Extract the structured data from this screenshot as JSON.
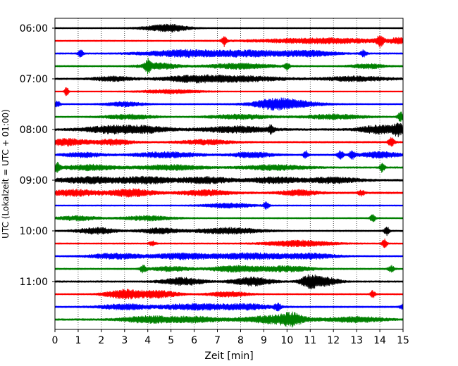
{
  "chart_data": {
    "type": "line",
    "title": "",
    "xlabel": "Zeit  [min]",
    "ylabel": "UTC (Lokalzeit = UTC + 01:00)",
    "xlim": [
      0,
      15
    ],
    "x_ticks": [
      "0",
      "1",
      "2",
      "3",
      "4",
      "5",
      "6",
      "7",
      "8",
      "9",
      "10",
      "11",
      "12",
      "13",
      "14",
      "15"
    ],
    "y_ticks": [
      "06:00",
      "07:00",
      "08:00",
      "09:00",
      "10:00",
      "11:00"
    ],
    "grid": "vertical dotted lines at each minute",
    "trace_interval_minutes": 15,
    "color_cycle": [
      "#000000",
      "#ff0000",
      "#0000ff",
      "#008000"
    ],
    "series": [
      {
        "start": "06:00",
        "color": "#000000",
        "noise": 0.3,
        "events": [
          [
            5.0,
            1.2,
            0.5
          ],
          [
            4.6,
            1.0,
            0.8
          ]
        ]
      },
      {
        "start": "06:15",
        "color": "#ff0000",
        "noise": 0.35,
        "events": [
          [
            7.3,
            2.8,
            0.08
          ],
          [
            11.5,
            1.4,
            2.0
          ],
          [
            14.0,
            3.0,
            0.1
          ],
          [
            14.8,
            1.2,
            0.3
          ]
        ]
      },
      {
        "start": "06:30",
        "color": "#0000ff",
        "noise": 0.4,
        "events": [
          [
            1.1,
            2.0,
            0.08
          ],
          [
            5.5,
            1.8,
            1.2
          ],
          [
            8.5,
            1.6,
            1.2
          ],
          [
            11.0,
            1.4,
            0.8
          ],
          [
            13.3,
            1.8,
            0.1
          ]
        ]
      },
      {
        "start": "06:45",
        "color": "#008000",
        "noise": 0.4,
        "events": [
          [
            4.0,
            3.0,
            0.08
          ],
          [
            4.5,
            1.6,
            0.6
          ],
          [
            8.0,
            1.4,
            1.0
          ],
          [
            10.0,
            1.8,
            0.08
          ],
          [
            13.5,
            1.2,
            0.5
          ]
        ]
      },
      {
        "start": "07:00",
        "color": "#000000",
        "noise": 0.45,
        "events": [
          [
            2.5,
            1.2,
            0.6
          ],
          [
            6.0,
            1.6,
            1.0
          ],
          [
            8.2,
            1.3,
            1.2
          ],
          [
            13.0,
            1.2,
            1.0
          ]
        ]
      },
      {
        "start": "07:15",
        "color": "#ff0000",
        "noise": 0.25,
        "events": [
          [
            0.5,
            2.8,
            0.06
          ],
          [
            5.0,
            1.0,
            1.0
          ]
        ]
      },
      {
        "start": "07:30",
        "color": "#0000ff",
        "noise": 0.35,
        "events": [
          [
            0.1,
            1.6,
            0.1
          ],
          [
            3.0,
            1.2,
            0.6
          ],
          [
            10.0,
            2.0,
            1.0
          ],
          [
            9.5,
            1.4,
            0.6
          ]
        ]
      },
      {
        "start": "07:45",
        "color": "#008000",
        "noise": 0.35,
        "events": [
          [
            3.2,
            1.2,
            0.8
          ],
          [
            8.0,
            1.2,
            1.0
          ],
          [
            12.0,
            1.2,
            1.0
          ],
          [
            14.9,
            2.4,
            0.1
          ]
        ]
      },
      {
        "start": "08:00",
        "color": "#000000",
        "noise": 0.55,
        "events": [
          [
            2.3,
            1.6,
            0.8
          ],
          [
            3.8,
            1.6,
            0.8
          ],
          [
            7.8,
            1.6,
            1.0
          ],
          [
            9.3,
            1.8,
            0.1
          ],
          [
            14.0,
            2.2,
            0.6
          ],
          [
            14.8,
            2.6,
            0.15
          ]
        ]
      },
      {
        "start": "08:15",
        "color": "#ff0000",
        "noise": 0.45,
        "events": [
          [
            0.5,
            1.8,
            0.6
          ],
          [
            2.5,
            1.4,
            0.6
          ],
          [
            6.5,
            1.2,
            0.8
          ],
          [
            14.5,
            2.4,
            0.1
          ]
        ]
      },
      {
        "start": "08:30",
        "color": "#0000ff",
        "noise": 0.45,
        "events": [
          [
            1.2,
            1.2,
            0.6
          ],
          [
            4.8,
            1.4,
            1.0
          ],
          [
            8.5,
            1.4,
            0.6
          ],
          [
            10.8,
            2.2,
            0.08
          ],
          [
            12.3,
            2.0,
            0.1
          ],
          [
            12.8,
            2.0,
            0.1
          ],
          [
            14.0,
            1.6,
            0.6
          ]
        ]
      },
      {
        "start": "08:45",
        "color": "#008000",
        "noise": 0.45,
        "events": [
          [
            0.1,
            2.4,
            0.1
          ],
          [
            1.5,
            1.4,
            0.8
          ],
          [
            5.0,
            1.3,
            1.0
          ],
          [
            9.5,
            1.3,
            1.0
          ],
          [
            14.1,
            2.4,
            0.08
          ]
        ]
      },
      {
        "start": "09:00",
        "color": "#000000",
        "noise": 0.55,
        "events": [
          [
            1.5,
            1.6,
            1.0
          ],
          [
            4.0,
            1.6,
            0.8
          ],
          [
            6.5,
            1.6,
            0.8
          ],
          [
            9.5,
            1.4,
            0.8
          ],
          [
            12.0,
            1.4,
            0.8
          ]
        ]
      },
      {
        "start": "09:15",
        "color": "#ff0000",
        "noise": 0.5,
        "events": [
          [
            0.8,
            1.6,
            0.8
          ],
          [
            3.3,
            1.9,
            0.7
          ],
          [
            6.5,
            1.4,
            0.8
          ],
          [
            10.5,
            1.4,
            0.6
          ],
          [
            13.2,
            1.4,
            0.1
          ]
        ]
      },
      {
        "start": "09:30",
        "color": "#0000ff",
        "noise": 0.3,
        "events": [
          [
            7.5,
            1.2,
            0.8
          ],
          [
            9.1,
            2.2,
            0.08
          ]
        ]
      },
      {
        "start": "09:45",
        "color": "#008000",
        "noise": 0.35,
        "events": [
          [
            1.0,
            1.2,
            0.6
          ],
          [
            4.0,
            1.2,
            0.8
          ],
          [
            13.7,
            2.4,
            0.08
          ]
        ]
      },
      {
        "start": "10:00",
        "color": "#000000",
        "noise": 0.4,
        "events": [
          [
            1.8,
            1.6,
            0.6
          ],
          [
            4.5,
            1.4,
            0.6
          ],
          [
            7.5,
            1.6,
            1.0
          ],
          [
            14.3,
            2.2,
            0.08
          ]
        ]
      },
      {
        "start": "10:15",
        "color": "#ff0000",
        "noise": 0.35,
        "events": [
          [
            4.2,
            1.4,
            0.1
          ],
          [
            10.5,
            1.6,
            1.0
          ],
          [
            14.2,
            2.4,
            0.08
          ]
        ]
      },
      {
        "start": "10:30",
        "color": "#0000ff",
        "noise": 0.4,
        "events": [
          [
            2.6,
            1.4,
            0.8
          ],
          [
            5.6,
            1.6,
            1.0
          ],
          [
            8.5,
            1.6,
            1.0
          ],
          [
            11.0,
            1.4,
            0.8
          ]
        ]
      },
      {
        "start": "10:45",
        "color": "#008000",
        "noise": 0.4,
        "events": [
          [
            3.8,
            1.8,
            0.1
          ],
          [
            5.0,
            1.2,
            0.6
          ],
          [
            7.8,
            1.6,
            0.8
          ],
          [
            10.0,
            1.4,
            0.8
          ],
          [
            14.5,
            1.6,
            0.1
          ]
        ]
      },
      {
        "start": "11:00",
        "color": "#000000",
        "noise": 0.45,
        "events": [
          [
            5.5,
            2.0,
            0.6
          ],
          [
            8.5,
            2.2,
            0.6
          ],
          [
            11.0,
            3.4,
            0.3
          ],
          [
            11.7,
            2.0,
            0.4
          ]
        ]
      },
      {
        "start": "11:15",
        "color": "#ff0000",
        "noise": 0.35,
        "events": [
          [
            3.0,
            2.4,
            0.6
          ],
          [
            4.5,
            1.8,
            0.6
          ],
          [
            7.5,
            1.4,
            0.6
          ],
          [
            13.7,
            2.0,
            0.08
          ]
        ]
      },
      {
        "start": "11:30",
        "color": "#0000ff",
        "noise": 0.4,
        "events": [
          [
            3.0,
            1.4,
            0.8
          ],
          [
            6.0,
            1.6,
            1.0
          ],
          [
            8.3,
            1.4,
            0.8
          ],
          [
            9.6,
            1.6,
            0.1
          ],
          [
            15.0,
            1.6,
            0.1
          ]
        ]
      },
      {
        "start": "11:45",
        "color": "#008000",
        "noise": 0.5,
        "events": [
          [
            4.0,
            1.6,
            0.8
          ],
          [
            6.0,
            1.4,
            0.8
          ],
          [
            9.5,
            2.0,
            1.0
          ],
          [
            10.2,
            2.2,
            0.3
          ],
          [
            13.0,
            1.4,
            0.8
          ]
        ]
      }
    ]
  }
}
